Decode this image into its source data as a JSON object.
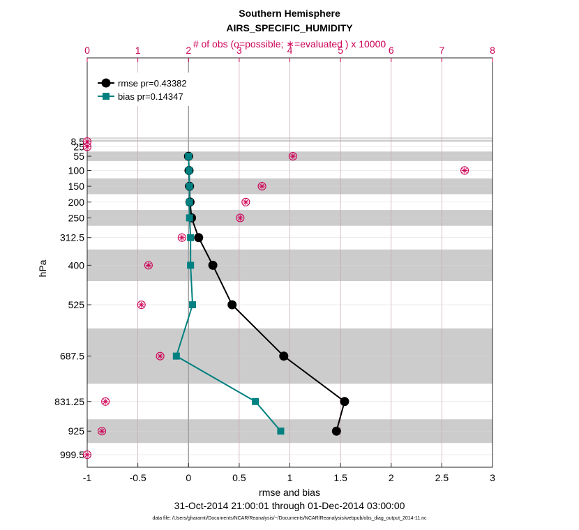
{
  "chart_data": {
    "type": "line",
    "title": "Southern Hemisphere",
    "subtitle": "AIRS_SPECIFIC_HUMIDITY",
    "top_axis_label": "# of obs (o=possible; ∗=evaluated ) x 10000",
    "xlabel": "rmse and bias",
    "ylabel": "hPa",
    "date_range": "31-Oct-2014 21:00:01 through 01-Dec-2014 03:00:00",
    "footnote": "data file: /Users/gharamti/Documents/NCAR/Reanalysis/~/Documents/NCAR/Reanalysis/webpub/obs_diag_output_2014-11.nc",
    "xlim": [
      -1,
      3
    ],
    "x_ticks": [
      -1,
      -0.5,
      0,
      0.5,
      1,
      1.5,
      2,
      2.5,
      3
    ],
    "x_tick_labels": [
      "-1",
      "-0.5",
      "0",
      "0.5",
      "1",
      "1.5",
      "2",
      "2.5",
      "3"
    ],
    "top_xlim": [
      0,
      8
    ],
    "top_ticks": [
      0,
      1,
      2,
      3,
      4,
      5,
      6,
      7,
      8
    ],
    "top_tick_labels": [
      "0",
      "1",
      "2",
      "3",
      "4",
      "5",
      "6",
      "7",
      "8"
    ],
    "levels": [
      8.5,
      25,
      55,
      100,
      150,
      200,
      250,
      312.5,
      400,
      525,
      687.5,
      831.25,
      925,
      999.5
    ],
    "level_labels": [
      "8.5",
      "25",
      "55",
      "100",
      "150",
      "200",
      "250",
      "312.5",
      "400",
      "525",
      "687.5",
      "831.25",
      "925",
      "999.5"
    ],
    "shaded_bands": [
      [
        3,
        8.5
      ],
      [
        40,
        70
      ],
      [
        125,
        175
      ],
      [
        225,
        275
      ],
      [
        350,
        450
      ],
      [
        600,
        775
      ],
      [
        887.5,
        962.5
      ]
    ],
    "legend": [
      "rmse pr=0.43382",
      "bias pr=0.14347"
    ],
    "legend_position": "top-left",
    "series": [
      {
        "name": "rmse",
        "color": "#000000",
        "levels": [
          55,
          100,
          150,
          200,
          250,
          312.5,
          400,
          525,
          687.5,
          831.25,
          925
        ],
        "values": [
          0.0,
          0.005,
          0.01,
          0.015,
          0.03,
          0.1,
          0.24,
          0.43,
          0.94,
          1.54,
          1.46
        ]
      },
      {
        "name": "bias",
        "color": "#008080",
        "levels": [
          55,
          100,
          150,
          200,
          250,
          312.5,
          400,
          525,
          687.5,
          831.25,
          925
        ],
        "values": [
          0.0,
          0.005,
          0.01,
          0.01,
          0.01,
          0.02,
          0.02,
          0.04,
          -0.12,
          0.66,
          0.91
        ]
      }
    ],
    "obs_counts": {
      "color": "#cc0055",
      "levels": [
        8.5,
        25,
        55,
        100,
        150,
        200,
        250,
        312.5,
        400,
        525,
        687.5,
        831.25,
        925,
        999.5
      ],
      "possible": [
        0.0,
        0.0,
        4.06,
        7.45,
        3.45,
        3.13,
        3.02,
        1.87,
        1.21,
        1.07,
        1.44,
        0.36,
        0.29,
        0.0
      ],
      "evaluated": [
        0.0,
        0.0,
        4.06,
        7.45,
        3.45,
        3.13,
        3.02,
        1.87,
        1.21,
        1.07,
        1.44,
        0.36,
        0.29,
        0.0
      ]
    },
    "colors": {
      "top_axis": "#cc0055",
      "band": "#cccccc",
      "grid": "#c4a0b4",
      "zero_line": "#a0a0a0"
    }
  }
}
